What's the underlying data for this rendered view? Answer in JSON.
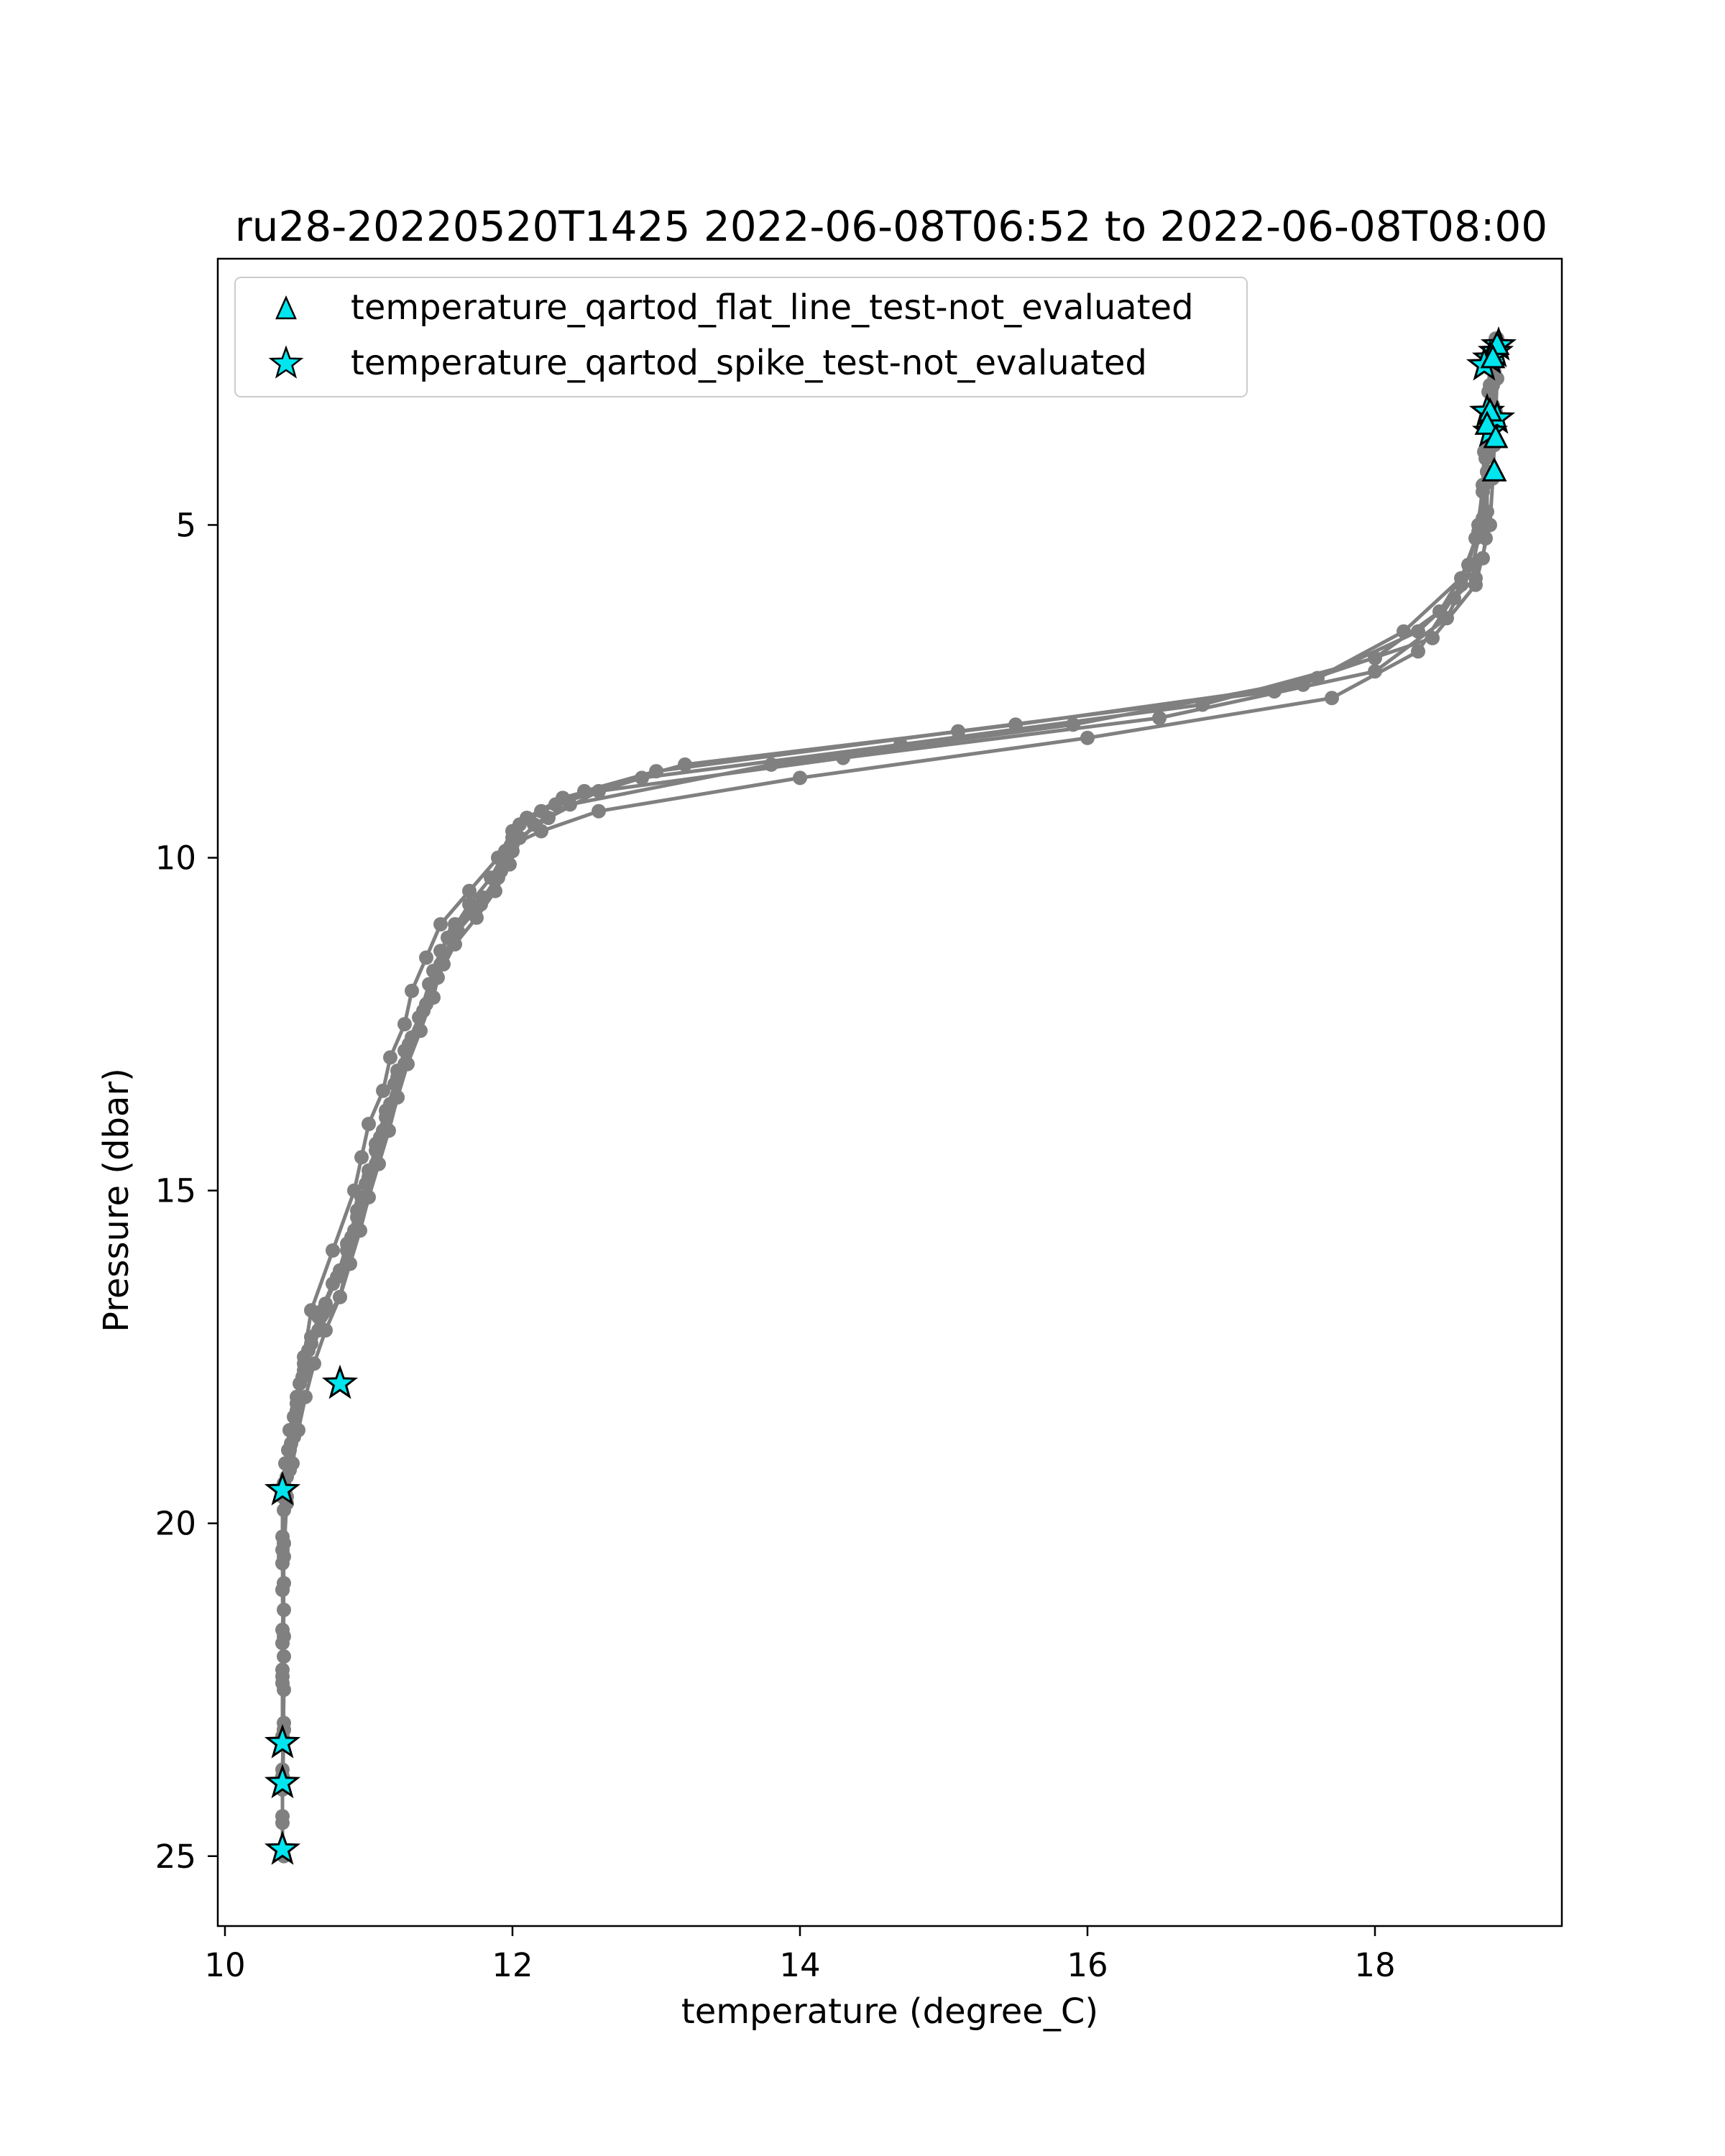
{
  "chart_data": {
    "type": "line",
    "title": "ru28-20220520T1425 2022-06-08T06:52 to 2022-06-08T08:00",
    "xlabel": "temperature (degree_C)",
    "ylabel": "Pressure (dbar)",
    "xlim": [
      9.95,
      19.3
    ],
    "ylim": [
      26.05,
      1.0
    ],
    "y_inverted": true,
    "grid": false,
    "legend_position": "top-left",
    "xticks": [
      10,
      12,
      14,
      16,
      18
    ],
    "yticks": [
      5,
      10,
      15,
      20,
      25
    ],
    "colors": {
      "profile_line": "#808080",
      "marker_face": "#00e5ee",
      "marker_edge": "#000000"
    },
    "series": [
      {
        "x": [
          18.85,
          18.83,
          18.82,
          18.8,
          18.78,
          18.78,
          18.77,
          18.75,
          18.7,
          18.55,
          18.3,
          17.5,
          15.5,
          13.2,
          12.35,
          12.1,
          12.0,
          11.95,
          11.8,
          11.6,
          11.5,
          11.45,
          11.35,
          11.25,
          11.2,
          11.1,
          11.05,
          10.95,
          10.9,
          10.85,
          10.8,
          10.65,
          10.55,
          10.5,
          10.45,
          10.42,
          10.4,
          10.4,
          10.41,
          10.4,
          10.4,
          10.41,
          10.4,
          10.4
        ],
        "y": [
          2.2,
          2.6,
          3.2,
          3.6,
          4.2,
          4.8,
          5.2,
          5.5,
          5.8,
          6.1,
          6.6,
          7.4,
          8.0,
          8.6,
          9.1,
          9.4,
          9.7,
          10.1,
          10.6,
          11.1,
          11.6,
          12.1,
          12.6,
          13.1,
          13.6,
          14.1,
          14.6,
          15.1,
          15.6,
          16.1,
          16.6,
          17.1,
          17.6,
          18.1,
          18.6,
          19.1,
          19.6,
          20.2,
          20.9,
          21.6,
          22.3,
          23.0,
          23.7,
          24.4
        ]
      },
      {
        "x": [
          18.82,
          18.8,
          18.78,
          18.76,
          18.75,
          18.72,
          18.65,
          18.45,
          18.0,
          16.8,
          14.7,
          12.9,
          12.3,
          12.05,
          11.95,
          11.85,
          11.7,
          11.55,
          11.45,
          11.4,
          11.3,
          11.2,
          11.15,
          11.08,
          11.0,
          10.95,
          10.88,
          10.8,
          10.7,
          10.6,
          10.55,
          10.5,
          10.48,
          10.45,
          10.43,
          10.41,
          10.4,
          10.41,
          10.4,
          10.41,
          10.4,
          10.4,
          10.4,
          10.41
        ],
        "y": [
          2.4,
          2.9,
          3.4,
          3.9,
          4.4,
          5.0,
          5.6,
          6.3,
          7.0,
          7.7,
          8.3,
          8.8,
          9.2,
          9.5,
          9.9,
          10.3,
          10.7,
          11.2,
          11.7,
          12.2,
          12.7,
          13.2,
          13.7,
          14.2,
          14.7,
          15.2,
          15.7,
          16.2,
          16.7,
          17.2,
          17.7,
          18.2,
          18.7,
          19.2,
          19.7,
          20.3,
          21.0,
          21.7,
          22.4,
          23.1,
          23.8,
          24.5,
          24.9,
          25.0
        ]
      },
      {
        "x": [
          18.86,
          18.85,
          18.84,
          18.83,
          18.82,
          18.8,
          18.7,
          18.4,
          17.3,
          15.1,
          13.0,
          12.5,
          12.2,
          12.0,
          11.9,
          11.7,
          11.5,
          11.4,
          11.3,
          11.25,
          11.15,
          11.1,
          11.0,
          10.95,
          10.9,
          10.75,
          10.6,
          10.55,
          10.5,
          10.45,
          10.42,
          10.4,
          10.41,
          10.4,
          10.41,
          10.4
        ],
        "y": [
          2.3,
          2.8,
          3.3,
          3.8,
          4.3,
          5.0,
          5.9,
          6.7,
          7.5,
          8.1,
          8.7,
          9.0,
          9.3,
          9.6,
          10.0,
          10.5,
          11.0,
          11.5,
          12.0,
          12.5,
          13.0,
          13.5,
          14.0,
          14.5,
          15.0,
          15.9,
          16.8,
          17.5,
          18.2,
          18.9,
          19.5,
          20.4,
          21.3,
          22.2,
          23.1,
          24.0
        ]
      },
      {
        "x": [
          18.8,
          18.79,
          18.78,
          18.77,
          18.75,
          18.7,
          18.6,
          18.3,
          17.7,
          16.0,
          14.0,
          12.6,
          12.2,
          12.0,
          11.92,
          11.8,
          11.6,
          11.5,
          11.42,
          11.35,
          11.25,
          11.18,
          11.12,
          11.05,
          10.98,
          10.92,
          10.85,
          10.75,
          10.65,
          10.58,
          10.52,
          10.48,
          10.44,
          10.41,
          10.4,
          10.41,
          10.4
        ],
        "y": [
          2.5,
          3.0,
          3.5,
          4.0,
          4.5,
          5.2,
          5.9,
          6.9,
          7.6,
          8.2,
          8.8,
          9.3,
          9.6,
          9.8,
          10.2,
          10.6,
          11.0,
          11.4,
          11.9,
          12.4,
          12.9,
          13.4,
          13.9,
          14.4,
          14.9,
          15.4,
          15.9,
          16.4,
          16.9,
          17.4,
          17.9,
          18.4,
          18.9,
          19.4,
          20.6,
          22.0,
          23.3
        ]
      },
      {
        "x": [
          18.84,
          18.83,
          18.82,
          18.8,
          18.78,
          18.75,
          18.68,
          18.5,
          18.0,
          16.5,
          14.3,
          12.6,
          12.25,
          12.05,
          11.98,
          11.88,
          11.75,
          11.6,
          11.48,
          11.38,
          11.28,
          11.2,
          11.12,
          11.05,
          11.0,
          10.92,
          10.85,
          10.78,
          10.68,
          10.6,
          10.54,
          10.5,
          10.46,
          10.43,
          10.41,
          10.4,
          10.41,
          10.4
        ],
        "y": [
          2.2,
          2.7,
          3.2,
          3.7,
          4.2,
          4.9,
          5.6,
          6.4,
          7.2,
          7.9,
          8.5,
          9.0,
          9.4,
          9.7,
          10.1,
          10.5,
          10.9,
          11.3,
          11.8,
          12.3,
          12.8,
          13.3,
          13.8,
          14.3,
          14.8,
          15.3,
          15.8,
          16.3,
          16.8,
          17.3,
          17.8,
          18.3,
          18.8,
          19.3,
          19.8,
          21.0,
          22.5,
          23.8
        ]
      },
      {
        "x": [
          18.83,
          18.82,
          18.8,
          18.78,
          18.76,
          18.72,
          18.6,
          18.2,
          17.6,
          15.9,
          13.8,
          12.4,
          12.15,
          12.0,
          11.9,
          11.78,
          11.62,
          11.52,
          11.44,
          11.36,
          11.27,
          11.2,
          11.14,
          11.07,
          11.0,
          10.94,
          10.87,
          10.8,
          10.7,
          10.62,
          10.56,
          10.51,
          10.47,
          10.43,
          10.41,
          10.4,
          10.4
        ],
        "y": [
          2.4,
          2.9,
          3.4,
          3.9,
          4.4,
          5.1,
          5.8,
          6.6,
          7.3,
          8.0,
          8.6,
          9.2,
          9.5,
          9.9,
          10.3,
          10.7,
          11.1,
          11.6,
          12.1,
          12.6,
          13.1,
          13.6,
          14.1,
          14.6,
          15.1,
          15.6,
          16.1,
          16.6,
          17.1,
          17.6,
          18.1,
          18.6,
          19.1,
          19.6,
          20.5,
          21.8,
          23.2
        ]
      }
    ],
    "flat_line_markers": [
      {
        "x": 18.85,
        "y": 2.3
      },
      {
        "x": 18.82,
        "y": 2.5
      },
      {
        "x": 18.8,
        "y": 3.3
      },
      {
        "x": 18.78,
        "y": 3.5
      },
      {
        "x": 18.84,
        "y": 3.7
      },
      {
        "x": 18.83,
        "y": 4.2
      }
    ],
    "spike_markers": [
      {
        "x": 18.86,
        "y": 2.3
      },
      {
        "x": 18.84,
        "y": 2.4
      },
      {
        "x": 18.8,
        "y": 2.5
      },
      {
        "x": 18.76,
        "y": 2.6
      },
      {
        "x": 18.78,
        "y": 3.3
      },
      {
        "x": 18.85,
        "y": 3.4
      },
      {
        "x": 18.8,
        "y": 3.6
      },
      {
        "x": 10.8,
        "y": 17.9
      },
      {
        "x": 10.4,
        "y": 19.5
      },
      {
        "x": 10.4,
        "y": 23.3
      },
      {
        "x": 10.4,
        "y": 23.9
      },
      {
        "x": 10.4,
        "y": 24.9
      }
    ],
    "legend": [
      {
        "marker": "triangle",
        "label": "temperature_qartod_flat_line_test-not_evaluated"
      },
      {
        "marker": "star",
        "label": "temperature_qartod_spike_test-not_evaluated"
      }
    ]
  }
}
